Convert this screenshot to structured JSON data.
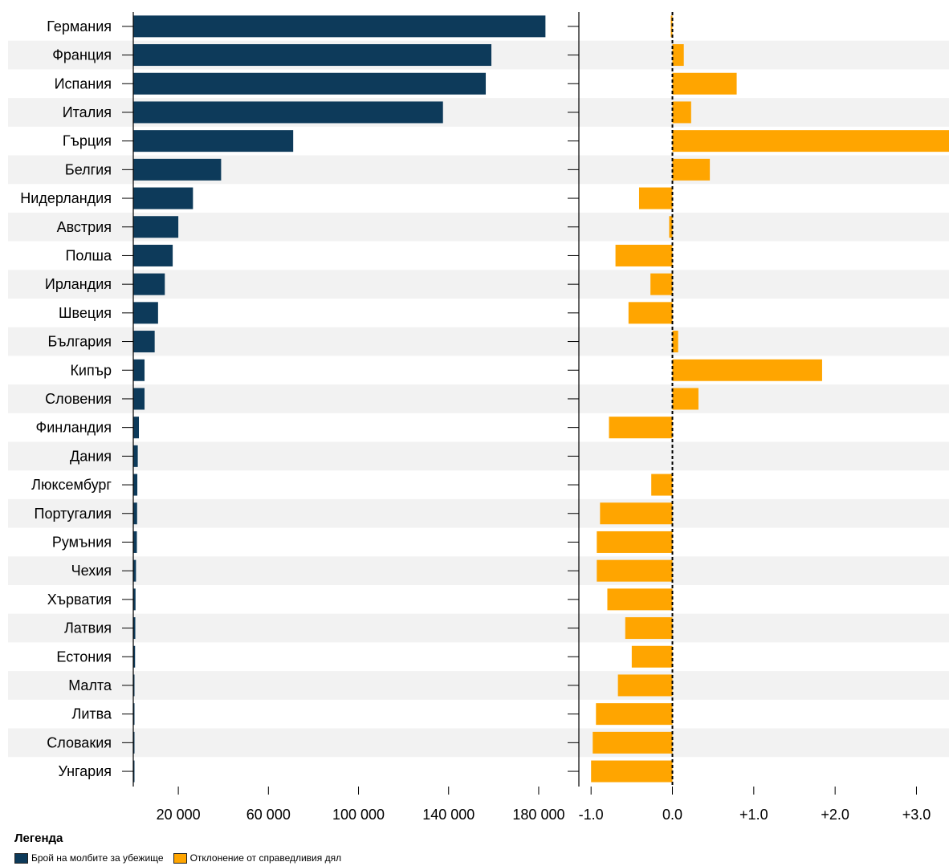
{
  "chart_data": [
    {
      "type": "bar",
      "orientation": "horizontal",
      "categories": [
        "Германия",
        "Франция",
        "Испания",
        "Италия",
        "Гърция",
        "Белгия",
        "Нидерландия",
        "Австрия",
        "Полша",
        "Ирландия",
        "Швеция",
        "България",
        "Кипър",
        "Словения",
        "Финландия",
        "Дания",
        "Люксембург",
        "Португалия",
        "Румъния",
        "Чехия",
        "Хърватия",
        "Латвия",
        "Естония",
        "Малта",
        "Литва",
        "Словакия",
        "Унгария"
      ],
      "series": [
        {
          "name": "Брой на молбите за убежище",
          "values": [
            183000,
            159000,
            156500,
            137500,
            71000,
            39000,
            26500,
            20000,
            17500,
            14000,
            11000,
            9500,
            5000,
            5000,
            2500,
            2000,
            1800,
            1700,
            1600,
            1200,
            1000,
            900,
            800,
            100,
            100,
            100,
            100
          ]
        }
      ],
      "xticks": [
        "20 000",
        "60 000",
        "100 000",
        "140 000",
        "180 000"
      ],
      "xtick_values": [
        20000,
        60000,
        100000,
        140000,
        180000
      ],
      "xlim": [
        0,
        190000
      ],
      "color": "#0d3a5a",
      "grid": false
    },
    {
      "type": "bar",
      "orientation": "horizontal",
      "categories": [
        "Германия",
        "Франция",
        "Испания",
        "Италия",
        "Гърция",
        "Белгия",
        "Нидерландия",
        "Австрия",
        "Полша",
        "Ирландия",
        "Швеция",
        "България",
        "Кипър",
        "Словения",
        "Финландия",
        "Дания",
        "Люксембург",
        "Португалия",
        "Румъния",
        "Чехия",
        "Хърватия",
        "Латвия",
        "Естония",
        "Малта",
        "Литва",
        "Словакия",
        "Унгария"
      ],
      "series": [
        {
          "name": "Отклонение от справедливия дял",
          "values": [
            -0.02,
            0.14,
            0.79,
            0.23,
            3.4,
            0.46,
            -0.41,
            -0.04,
            -0.7,
            -0.27,
            -0.54,
            0.07,
            1.84,
            0.32,
            -0.78,
            0.0,
            -0.26,
            -0.89,
            -0.93,
            -0.93,
            -0.8,
            -0.58,
            -0.5,
            -0.67,
            -0.94,
            -0.98,
            -1.0
          ]
        }
      ],
      "xticks": [
        "-1.0",
        "0.0",
        "+1.0",
        "+2.0",
        "+3.0"
      ],
      "xtick_values": [
        -1,
        0,
        1,
        2,
        3
      ],
      "xlim": [
        -1.15,
        3.4
      ],
      "color": "#ffa500",
      "zero_line": "dashed",
      "grid": false
    }
  ],
  "legend": {
    "title": "Легенда",
    "items": [
      {
        "label": "Брой на молбите за убежище",
        "color": "#0d3a5a"
      },
      {
        "label": "Отклонение от справедливия дял",
        "color": "#ffa500"
      }
    ]
  },
  "colors": {
    "band": "#f2f2f2",
    "axis": "#000000"
  }
}
